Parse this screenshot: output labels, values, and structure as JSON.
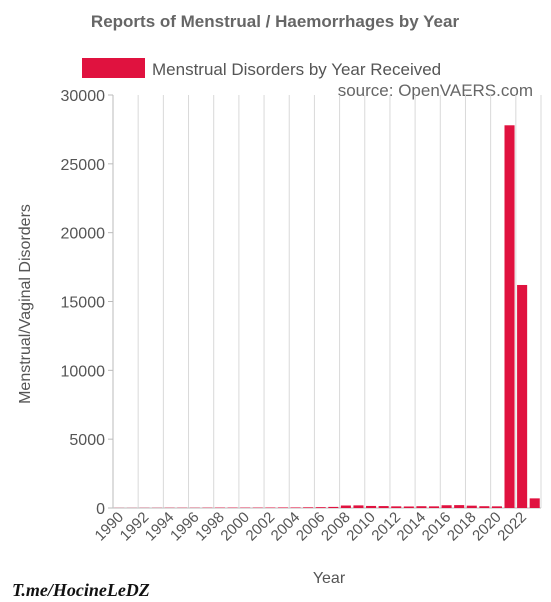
{
  "chart_data": {
    "type": "bar",
    "title": "Reports of Menstrual / Haemorrhages by Year",
    "source": "source: OpenVAERS.com",
    "xlabel": "Year",
    "ylabel": "Menstrual/Vaginal Disorders",
    "ylim": [
      0,
      30000
    ],
    "yticks": [
      "0",
      "5000",
      "10000",
      "15000",
      "20000",
      "25000",
      "30000"
    ],
    "grid": "vertical",
    "legend_position": "top",
    "categories": [
      "1990",
      "1991",
      "1992",
      "1993",
      "1994",
      "1995",
      "1996",
      "1997",
      "1998",
      "1999",
      "2000",
      "2001",
      "2002",
      "2003",
      "2004",
      "2005",
      "2006",
      "2007",
      "2008",
      "2009",
      "2010",
      "2011",
      "2012",
      "2013",
      "2014",
      "2015",
      "2016",
      "2017",
      "2018",
      "2019",
      "2020",
      "2021",
      "2022",
      "2023"
    ],
    "xtick_labels": [
      "1990",
      "1992",
      "1994",
      "1996",
      "1998",
      "2000",
      "2002",
      "2004",
      "2006",
      "2008",
      "2010",
      "2012",
      "2014",
      "2016",
      "2018",
      "2020",
      "2022"
    ],
    "series": [
      {
        "name": "Menstrual Disorders by Year Received",
        "color": "#e0123f",
        "values": [
          10,
          10,
          15,
          15,
          20,
          20,
          20,
          25,
          30,
          30,
          30,
          30,
          35,
          40,
          40,
          50,
          60,
          80,
          180,
          190,
          150,
          140,
          120,
          110,
          130,
          120,
          200,
          210,
          170,
          130,
          120,
          27800,
          16200,
          700
        ]
      }
    ]
  },
  "watermark": "T.me/HocineLeDZ"
}
